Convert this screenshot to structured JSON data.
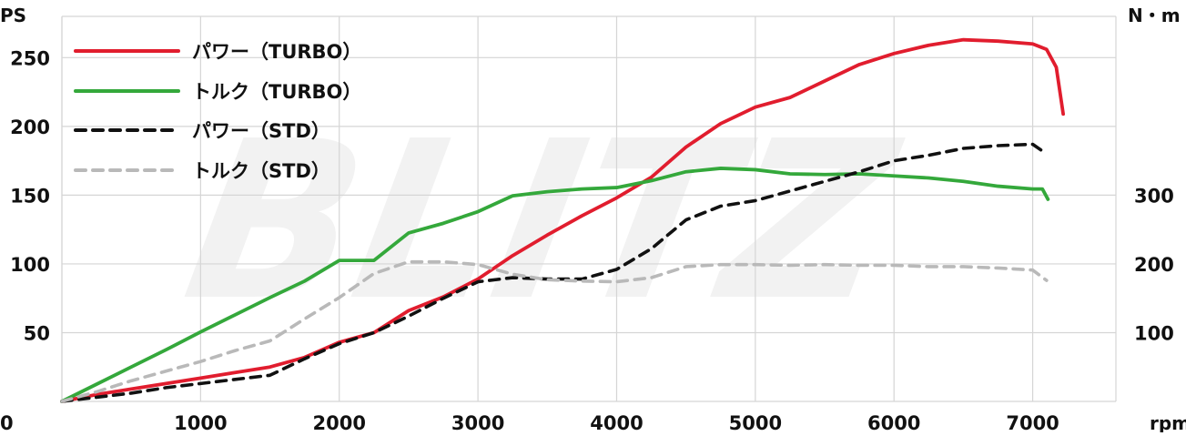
{
  "chart_data": {
    "type": "line",
    "x_unit_label": "rpm",
    "y_left_unit_label": "PS",
    "y_right_unit_label": "N・m",
    "x_range": [
      0,
      7600
    ],
    "y_left_range": [
      0,
      280
    ],
    "y_right_scale": {
      "ticks": [
        100,
        200,
        300
      ]
    },
    "x_ticks": [
      0,
      1000,
      2000,
      3000,
      4000,
      5000,
      6000,
      7000
    ],
    "x_tick_labels": [
      "0",
      "1000",
      "2000",
      "3000",
      "4000",
      "5000",
      "6000",
      "7000"
    ],
    "y_left_ticks": [
      50,
      100,
      150,
      200,
      250
    ],
    "y_left_tick_labels": [
      "50",
      "100",
      "150",
      "200",
      "250"
    ],
    "y_right_tick_labels": [
      "100",
      "200",
      "300"
    ],
    "grid": true,
    "legend_position": "top-left",
    "watermark_text": "BLITZ",
    "series": [
      {
        "name": "パワー（TURBO）",
        "axis": "left",
        "color": "#e11d2e",
        "dash": "solid",
        "x": [
          0,
          250,
          500,
          750,
          1000,
          1250,
          1500,
          1750,
          2000,
          2250,
          2500,
          2750,
          3000,
          3250,
          3500,
          3750,
          4000,
          4250,
          4500,
          4750,
          5000,
          5250,
          5500,
          5750,
          6000,
          6250,
          6500,
          6750,
          7000,
          7100,
          7170,
          7220
        ],
        "values": [
          0,
          5,
          9,
          13,
          17,
          21,
          25,
          32,
          43,
          50,
          66,
          76,
          89,
          106,
          121,
          135,
          148,
          163,
          185,
          202,
          214,
          221,
          233,
          245,
          253,
          259,
          263,
          262,
          260,
          256,
          243,
          209
        ]
      },
      {
        "name": "トルク（TURBO）",
        "axis": "right",
        "color": "#34a83b",
        "dash": "solid",
        "x": [
          0,
          250,
          500,
          750,
          1000,
          1250,
          1500,
          1750,
          2000,
          2250,
          2500,
          2750,
          3000,
          3250,
          3500,
          3750,
          4000,
          4250,
          4500,
          4750,
          5000,
          5250,
          5500,
          5750,
          6000,
          6250,
          6500,
          6750,
          7000,
          7070,
          7110
        ],
        "values": [
          0,
          25,
          50,
          75,
          101,
          126,
          151,
          175,
          205,
          205,
          245,
          259,
          276,
          299,
          305,
          309,
          311,
          321,
          334,
          339,
          337,
          331,
          330,
          331,
          328,
          325,
          320,
          313,
          309,
          309,
          294
        ]
      },
      {
        "name": "パワー（STD）",
        "axis": "left",
        "color": "#111111",
        "dash": "dashed",
        "x": [
          0,
          250,
          500,
          750,
          1000,
          1250,
          1500,
          1750,
          2000,
          2250,
          2500,
          2750,
          3000,
          3250,
          3500,
          3750,
          4000,
          4250,
          4500,
          4750,
          5000,
          5250,
          5500,
          5750,
          6000,
          6250,
          6500,
          6750,
          7000,
          7100
        ],
        "values": [
          0,
          3,
          6,
          10,
          13,
          16,
          19,
          31,
          42,
          50,
          62,
          75,
          87,
          90,
          89,
          89,
          96,
          111,
          132,
          142,
          146,
          153,
          160,
          167,
          175,
          179,
          184,
          186,
          187,
          180
        ]
      },
      {
        "name": "トルク（STD）",
        "axis": "right",
        "color": "#b9b9b9",
        "dash": "dashed",
        "x": [
          0,
          250,
          500,
          750,
          1000,
          1250,
          1500,
          1750,
          2000,
          2250,
          2500,
          2750,
          3000,
          3250,
          3500,
          3750,
          4000,
          4250,
          4500,
          4750,
          5000,
          5250,
          5500,
          5750,
          6000,
          6250,
          6500,
          6750,
          7000,
          7100
        ],
        "values": [
          0,
          14,
          30,
          44,
          58,
          74,
          88,
          120,
          151,
          186,
          203,
          203,
          199,
          185,
          177,
          175,
          174,
          180,
          196,
          199,
          199,
          198,
          199,
          198,
          198,
          196,
          196,
          194,
          191,
          176
        ]
      }
    ]
  }
}
